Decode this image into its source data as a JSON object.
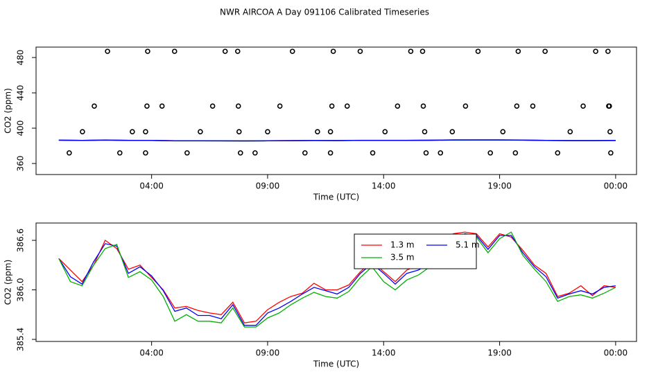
{
  "title": "NWR AIRCOA A  Day 091106  Calibrated Timeseries",
  "chart_data": [
    {
      "type": "scatter",
      "xlabel": "Time (UTC)",
      "ylabel": "CO2 (ppm)",
      "xlim": [
        -0.98,
        24.9
      ],
      "ylim": [
        347.5,
        491.8
      ],
      "xticks": [
        {
          "value": 4,
          "label": "04:00"
        },
        {
          "value": 9,
          "label": "09:00"
        },
        {
          "value": 14,
          "label": "14:00"
        },
        {
          "value": 19,
          "label": "19:00"
        },
        {
          "value": 24,
          "label": "00:00"
        }
      ],
      "yticks": [
        360,
        400,
        440,
        480
      ],
      "point_color": "#000000",
      "x": [
        0.45,
        1.02,
        1.53,
        2.1,
        2.63,
        3.17,
        3.74,
        3.74,
        3.8,
        3.83,
        4.45,
        4.99,
        5.53,
        6.1,
        6.63,
        7.17,
        7.71,
        7.74,
        7.77,
        7.83,
        8.46,
        9.0,
        9.53,
        10.07,
        10.61,
        11.15,
        11.71,
        11.71,
        11.77,
        11.83,
        12.43,
        12.99,
        13.53,
        14.06,
        14.6,
        15.17,
        15.68,
        15.71,
        15.77,
        15.83,
        16.45,
        16.96,
        17.53,
        18.07,
        18.6,
        19.14,
        19.68,
        19.74,
        19.8,
        20.43,
        20.96,
        21.5,
        22.04,
        22.6,
        23.14,
        23.67,
        23.7,
        23.73,
        23.76,
        23.79
      ],
      "values": [
        372,
        396,
        425,
        487,
        372,
        396,
        396,
        372,
        425,
        487,
        425,
        487,
        372,
        396,
        425,
        487,
        487,
        425,
        396,
        372,
        372,
        396,
        425,
        487,
        372,
        396,
        396,
        372,
        425,
        487,
        425,
        487,
        372,
        396,
        425,
        487,
        487,
        425,
        396,
        372,
        372,
        396,
        425,
        487,
        372,
        396,
        372,
        425,
        487,
        425,
        487,
        372,
        396,
        425,
        487,
        487,
        425,
        425,
        396,
        372
      ],
      "line_x": [
        0,
        1,
        2,
        3,
        4,
        5,
        6,
        7,
        8,
        9,
        10,
        11,
        12,
        13,
        14,
        15,
        16,
        17,
        18,
        19,
        20,
        21,
        22,
        23,
        24
      ],
      "series": [
        {
          "color": "#ff0000",
          "values": [
            386.38,
            386.1,
            386.6,
            386.25,
            386.15,
            385.78,
            385.75,
            385.7,
            385.6,
            385.76,
            385.92,
            386.08,
            386.0,
            386.22,
            386.22,
            386.24,
            386.36,
            386.68,
            386.68,
            386.68,
            386.48,
            386.2,
            385.96,
            385.93,
            386.03
          ]
        },
        {
          "color": "#00b000",
          "values": [
            386.38,
            386.05,
            386.5,
            386.15,
            386.12,
            385.62,
            385.62,
            385.6,
            385.55,
            385.66,
            385.82,
            385.97,
            385.9,
            386.15,
            386.1,
            386.12,
            386.28,
            386.58,
            386.64,
            386.62,
            386.42,
            386.1,
            385.92,
            385.9,
            386.03
          ]
        },
        {
          "color": "#0000ff",
          "values": [
            386.38,
            386.07,
            386.56,
            386.2,
            386.17,
            385.74,
            385.69,
            385.65,
            385.57,
            385.72,
            385.86,
            386.03,
            385.95,
            386.2,
            386.2,
            386.2,
            386.32,
            386.62,
            386.66,
            386.66,
            386.45,
            386.16,
            385.95,
            385.95,
            386.05
          ]
        }
      ]
    },
    {
      "type": "line",
      "xlabel": "Time (UTC)",
      "ylabel": "CO2 (ppm)",
      "xlim": [
        -0.98,
        24.9
      ],
      "ylim": [
        385.375,
        386.81
      ],
      "xticks": [
        {
          "value": 4,
          "label": "04:00"
        },
        {
          "value": 9,
          "label": "09:00"
        },
        {
          "value": 14,
          "label": "14:00"
        },
        {
          "value": 19,
          "label": "19:00"
        },
        {
          "value": 24,
          "label": "00:00"
        }
      ],
      "yticks": [
        {
          "value": 385.4,
          "label": "385.4"
        },
        {
          "value": 386.0,
          "label": "386.0"
        },
        {
          "value": 386.6,
          "label": "386.6"
        }
      ],
      "legend": "top-right",
      "x": [
        0,
        0.5,
        1,
        1.5,
        2,
        2.5,
        3,
        3.5,
        4,
        4.5,
        5,
        5.5,
        6,
        6.5,
        7,
        7.5,
        8,
        8.5,
        9,
        9.5,
        10,
        10.5,
        11,
        11.5,
        12,
        12.5,
        13,
        13.5,
        14,
        14.5,
        15,
        15.5,
        16,
        16.5,
        17,
        17.5,
        18,
        18.5,
        19,
        19.5,
        20,
        20.5,
        21,
        21.5,
        22,
        22.5,
        23,
        23.5,
        24
      ],
      "series": [
        {
          "name": "1.3 m",
          "color": "#ff0000",
          "values": [
            386.38,
            386.24,
            386.1,
            386.3,
            386.6,
            386.5,
            386.25,
            386.3,
            386.15,
            386.0,
            385.78,
            385.8,
            385.75,
            385.72,
            385.7,
            385.85,
            385.6,
            385.62,
            385.76,
            385.85,
            385.92,
            385.96,
            386.08,
            386.0,
            386.0,
            386.06,
            386.22,
            386.35,
            386.22,
            386.1,
            386.24,
            386.3,
            386.36,
            386.45,
            386.68,
            386.7,
            386.68,
            386.52,
            386.68,
            386.64,
            386.48,
            386.3,
            386.2,
            385.92,
            385.96,
            386.05,
            385.93,
            386.05,
            386.03
          ]
        },
        {
          "name": "5.1 m",
          "color": "#0000ff",
          "values": [
            386.38,
            386.16,
            386.07,
            386.34,
            386.56,
            386.53,
            386.2,
            386.28,
            386.17,
            385.99,
            385.74,
            385.78,
            385.69,
            385.69,
            385.65,
            385.82,
            385.57,
            385.57,
            385.72,
            385.78,
            385.86,
            385.95,
            386.03,
            385.99,
            385.95,
            386.03,
            386.2,
            386.32,
            386.2,
            386.07,
            386.2,
            386.24,
            386.32,
            386.41,
            386.62,
            386.68,
            386.66,
            386.49,
            386.66,
            386.66,
            386.45,
            386.28,
            386.16,
            385.9,
            385.95,
            385.99,
            385.95,
            386.03,
            386.05
          ]
        },
        {
          "name": "3.5 m",
          "color": "#00b000",
          "values": [
            386.38,
            386.1,
            386.05,
            386.3,
            386.5,
            386.55,
            386.15,
            386.22,
            386.12,
            385.92,
            385.62,
            385.7,
            385.62,
            385.62,
            385.6,
            385.78,
            385.55,
            385.55,
            385.66,
            385.72,
            385.82,
            385.9,
            385.97,
            385.92,
            385.9,
            385.98,
            386.15,
            386.28,
            386.1,
            386.0,
            386.12,
            386.18,
            386.28,
            386.4,
            386.58,
            386.66,
            386.64,
            386.45,
            386.62,
            386.7,
            386.42,
            386.25,
            386.1,
            385.86,
            385.92,
            385.94,
            385.9,
            385.96,
            386.03
          ]
        }
      ]
    }
  ]
}
